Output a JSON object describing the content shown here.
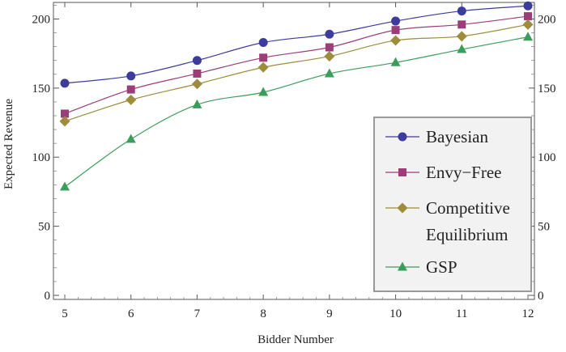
{
  "chart_data": {
    "type": "line",
    "xlabel": "Bidder Number",
    "ylabel": "Expected Revenue",
    "x": [
      5,
      6,
      7,
      8,
      9,
      10,
      11,
      12
    ],
    "xlim": [
      5,
      12
    ],
    "ylim": [
      0,
      212
    ],
    "x_ticks": [
      "5",
      "6",
      "7",
      "8",
      "9",
      "10",
      "11",
      "12"
    ],
    "y_ticks": [
      0,
      50,
      100,
      150,
      200
    ],
    "y_ticks_right": [
      0,
      50,
      100,
      150,
      200
    ],
    "grid": false,
    "legend_position": "bottom-right",
    "series": [
      {
        "name": "Bayesian",
        "marker": "circle",
        "color": "#3c3c9c",
        "values": [
          153.5,
          158.8,
          170.0,
          183.0,
          189.0,
          198.5,
          205.8,
          209.5
        ]
      },
      {
        "name": "Envy−Free",
        "marker": "square",
        "color": "#9c3c78",
        "values": [
          131.5,
          149.0,
          160.5,
          172.0,
          179.5,
          192.0,
          196.0,
          202.0
        ]
      },
      {
        "name": "Competitive Equilibrium",
        "name_lines": [
          "Competitive",
          "Equilibrium"
        ],
        "marker": "diamond",
        "color": "#9c8c3c",
        "values": [
          126.0,
          141.5,
          153.0,
          165.0,
          173.0,
          184.5,
          187.5,
          196.0
        ]
      },
      {
        "name": "GSP",
        "marker": "triangle",
        "color": "#3c9c5c",
        "values": [
          78.5,
          113.0,
          138.0,
          147.0,
          160.5,
          168.5,
          178.0,
          187.0
        ]
      }
    ]
  }
}
